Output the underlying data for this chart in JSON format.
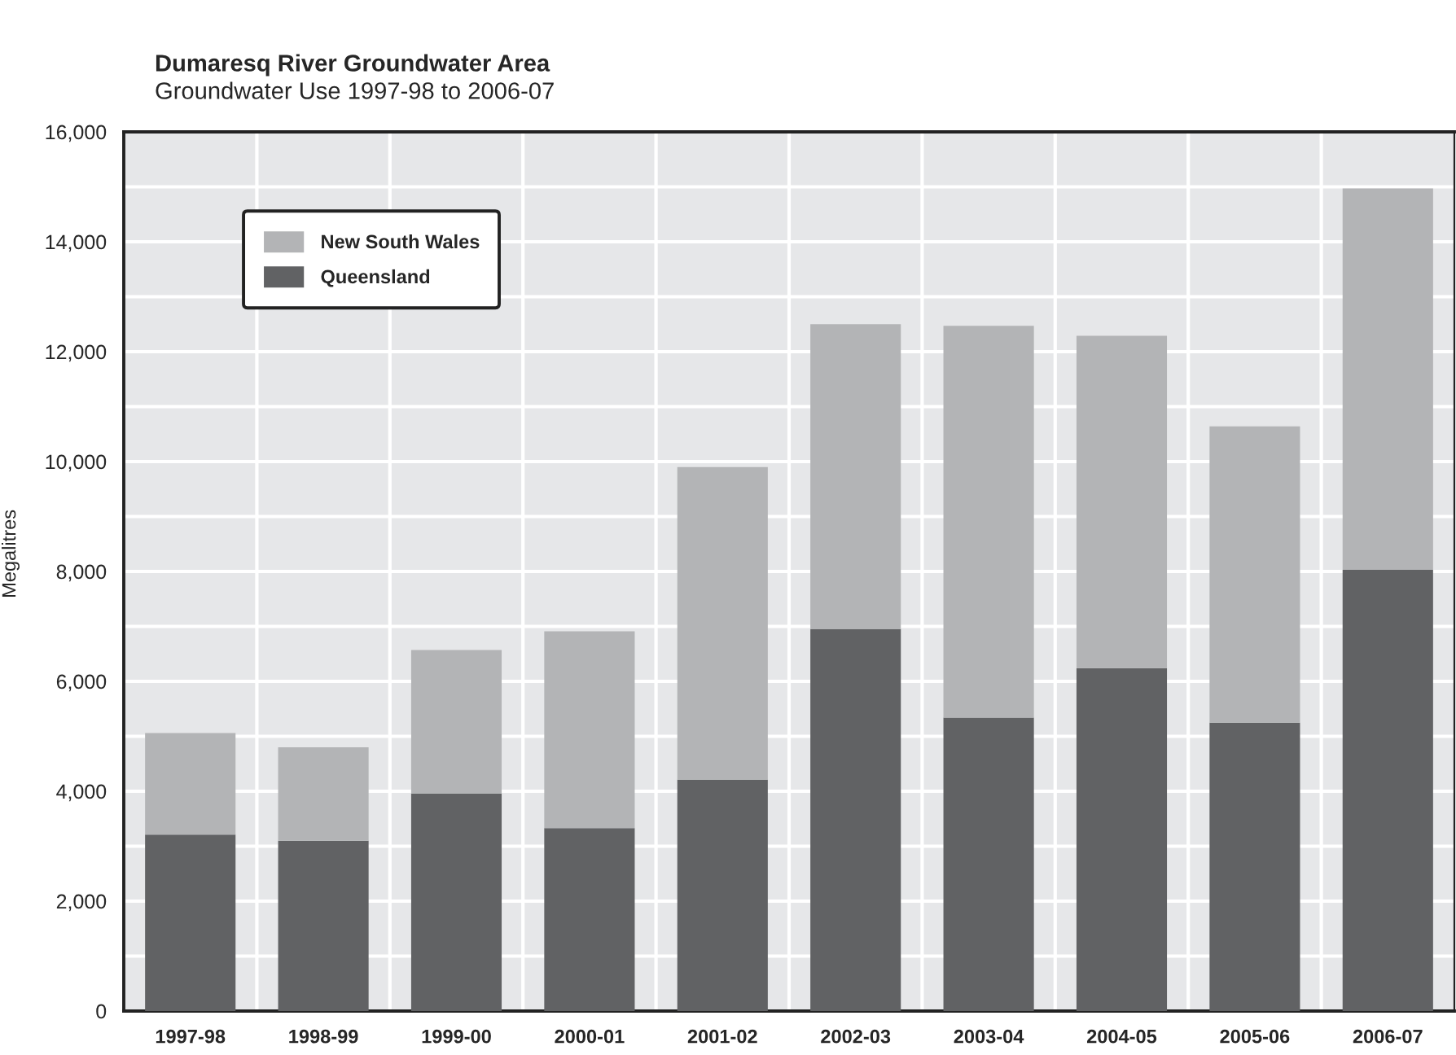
{
  "chart_data": {
    "type": "bar",
    "title": "Dumaresq River Groundwater Area",
    "subtitle": "Groundwater Use 1997-98 to 2006-07",
    "ylabel": "Megalitres",
    "categories": [
      "1997-98",
      "1998-99",
      "1999-00",
      "2000-01",
      "2001-02",
      "2002-03",
      "2003-04",
      "2004-05",
      "2005-06",
      "2006-07"
    ],
    "stacked": true,
    "series": [
      {
        "name": "Queensland",
        "color": "#616264",
        "values": [
          3210,
          3100,
          3960,
          3330,
          4210,
          6950,
          5340,
          6240,
          5250,
          8030
        ]
      },
      {
        "name": "New South Wales",
        "color": "#b3b4b6",
        "values": [
          1850,
          1700,
          2610,
          3580,
          5690,
          5550,
          7130,
          6050,
          5390,
          6940
        ]
      }
    ],
    "ylim": [
      0,
      16000
    ],
    "yticks": [
      {
        "value": 0,
        "label": "0"
      },
      {
        "value": 2000,
        "label": "2,000"
      },
      {
        "value": 4000,
        "label": "4,000"
      },
      {
        "value": 6000,
        "label": "6,000"
      },
      {
        "value": 8000,
        "label": "8,000"
      },
      {
        "value": 10000,
        "label": "10,000"
      },
      {
        "value": 12000,
        "label": "12,000"
      },
      {
        "value": 14000,
        "label": "14,000"
      },
      {
        "value": 16000,
        "label": "16,000"
      }
    ],
    "grid": true,
    "legend": "top left"
  }
}
